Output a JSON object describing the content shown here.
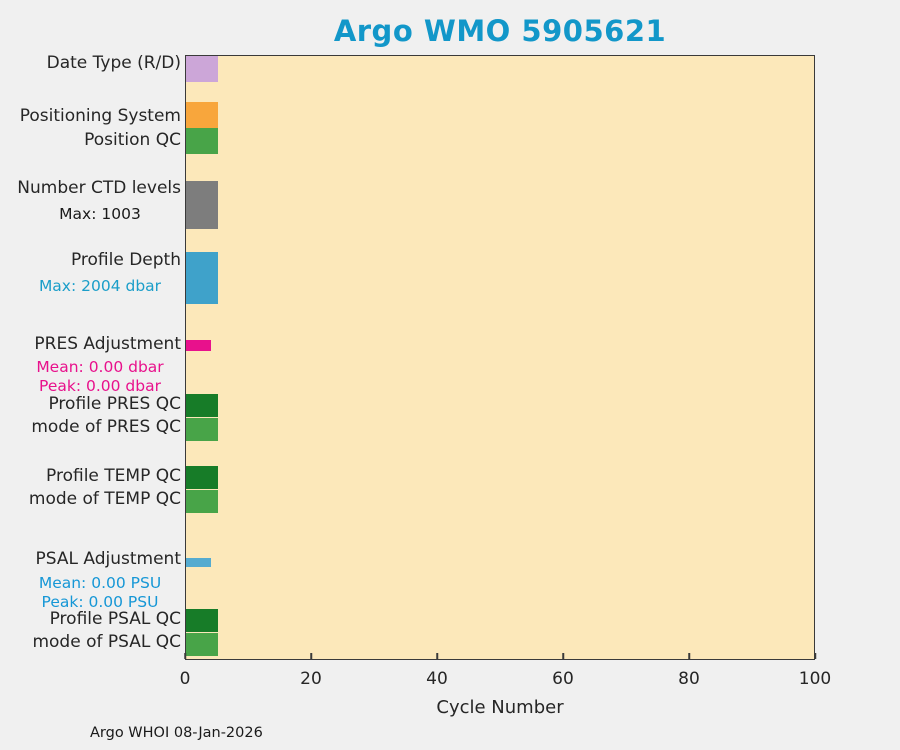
{
  "title": "Argo WMO 5905621",
  "footer": "Argo WHOI 08-Jan-2026",
  "colors": {
    "title": "#1297c9",
    "page_background": "#f0f0f0",
    "plot_background": "#fce8ba",
    "axis_text": "#262626"
  },
  "chart_data": {
    "type": "bar",
    "orientation": "horizontal",
    "title": "Argo WMO 5905621",
    "xlabel": "Cycle Number",
    "xlim": [
      0,
      100
    ],
    "xticks": [
      0,
      20,
      40,
      60,
      80,
      100
    ],
    "grid": false,
    "legend": "none",
    "rows": [
      {
        "label": "Date Type (R/D)",
        "bar_from": 0,
        "bar_to": 5,
        "color": "#cca6d8",
        "annotations": []
      },
      {
        "label": "Positioning System",
        "bar_from": 0,
        "bar_to": 5,
        "color": "#f8a63c",
        "annotations": []
      },
      {
        "label": "Position QC",
        "bar_from": 0,
        "bar_to": 5,
        "color": "#48a448",
        "annotations": []
      },
      {
        "label": "Number CTD levels",
        "bar_from": 0,
        "bar_to": 5,
        "color": "#7d7d7d",
        "annotations": [
          {
            "text": "Max: 1003",
            "color": "#1a1a1a"
          }
        ]
      },
      {
        "label": "Profile Depth",
        "bar_from": 0,
        "bar_to": 5,
        "color": "#3fa2ca",
        "annotations": [
          {
            "text": "Max: 2004 dbar",
            "color": "#1b9ec9"
          }
        ]
      },
      {
        "label": "PRES Adjustment",
        "bar_from": 0,
        "bar_to": 4,
        "color": "#e8118c",
        "annotations": [
          {
            "text": "Mean: 0.00 dbar",
            "color": "#e8118c"
          },
          {
            "text": "Peak: 0.00 dbar",
            "color": "#e8118c"
          }
        ]
      },
      {
        "label": "Profile PRES QC",
        "bar_from": 0,
        "bar_to": 5,
        "color": "#177c28",
        "annotations": []
      },
      {
        "label": "mode of PRES QC",
        "bar_from": 0,
        "bar_to": 5,
        "color": "#48a448",
        "annotations": []
      },
      {
        "label": "Profile TEMP QC",
        "bar_from": 0,
        "bar_to": 5,
        "color": "#177c28",
        "annotations": []
      },
      {
        "label": "mode of TEMP QC",
        "bar_from": 0,
        "bar_to": 5,
        "color": "#48a448",
        "annotations": []
      },
      {
        "label": "PSAL Adjustment",
        "bar_from": 0,
        "bar_to": 4,
        "color": "#55abd0",
        "annotations": [
          {
            "text": "Mean: 0.00 PSU",
            "color": "#1697d6"
          },
          {
            "text": "Peak: 0.00 PSU",
            "color": "#1697d6"
          }
        ]
      },
      {
        "label": "Profile PSAL QC",
        "bar_from": 0,
        "bar_to": 5,
        "color": "#177c28",
        "annotations": []
      },
      {
        "label": "mode of PSAL QC",
        "bar_from": 0,
        "bar_to": 5,
        "color": "#48a448",
        "annotations": []
      }
    ]
  }
}
